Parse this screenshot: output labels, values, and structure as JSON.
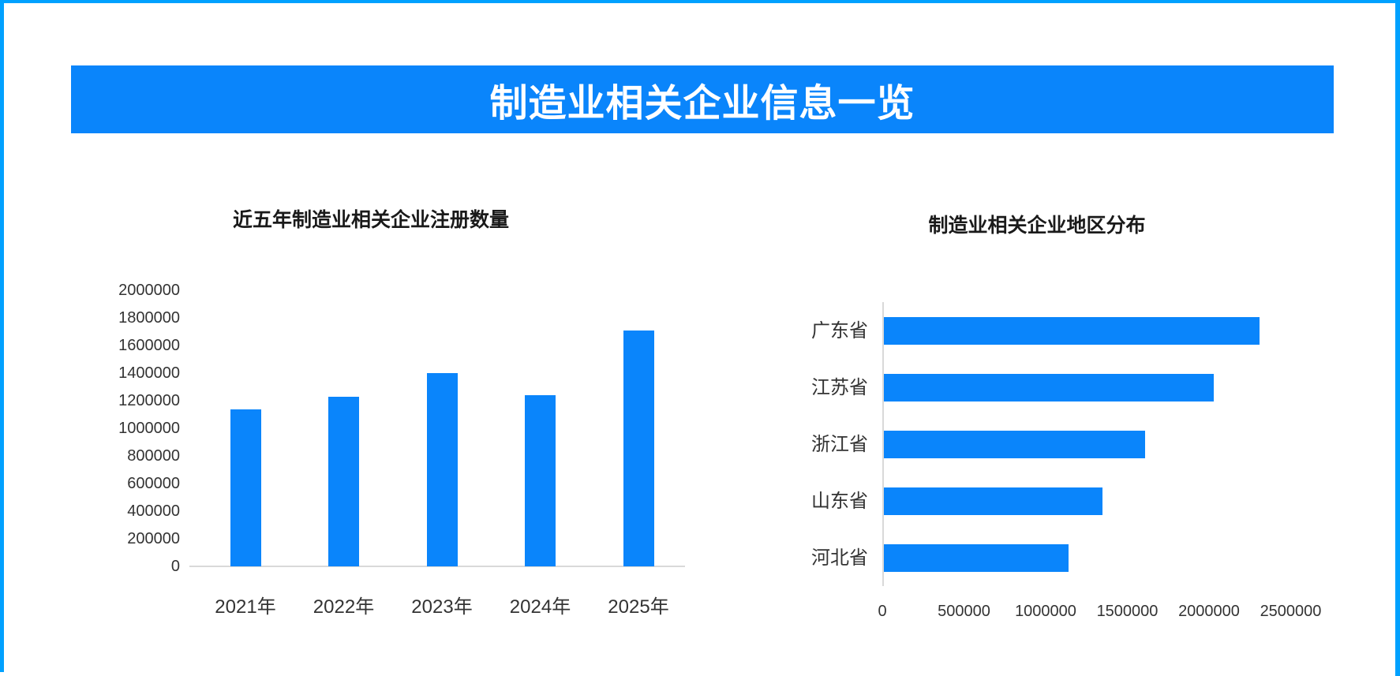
{
  "window": {
    "border_color": "#00A1FF",
    "background": "#FFFFFF"
  },
  "banner": {
    "title": "制造业相关企业信息一览",
    "background": "#0A85FB",
    "text_color": "#FFFFFF"
  },
  "chart_data": [
    {
      "type": "bar",
      "orientation": "vertical",
      "title": "近五年制造业相关企业注册数量",
      "categories": [
        "2021年",
        "2022年",
        "2023年",
        "2024年",
        "2025年"
      ],
      "values": [
        1140000,
        1230000,
        1400000,
        1240000,
        1710000
      ],
      "xlabel": "",
      "ylabel": "",
      "ylim": [
        0,
        2000000
      ],
      "ytick_step": 200000,
      "yticks": [
        "2000000",
        "1800000",
        "1600000",
        "1400000",
        "1200000",
        "1000000",
        "800000",
        "600000",
        "400000",
        "200000",
        "0"
      ],
      "bar_color": "#0A85FB",
      "grid": false,
      "legend": null
    },
    {
      "type": "bar",
      "orientation": "horizontal",
      "title": "制造业相关企业地区分布",
      "categories": [
        "广东省",
        "江苏省",
        "浙江省",
        "山东省",
        "河北省"
      ],
      "values": [
        2300000,
        2020000,
        1600000,
        1340000,
        1130000
      ],
      "xlabel": "",
      "ylabel": "",
      "xlim": [
        0,
        2500000
      ],
      "xtick_step": 500000,
      "xticks": [
        "0",
        "500000",
        "1000000",
        "1500000",
        "2000000",
        "2500000"
      ],
      "bar_color": "#0A85FB",
      "grid": false,
      "legend": null
    }
  ]
}
